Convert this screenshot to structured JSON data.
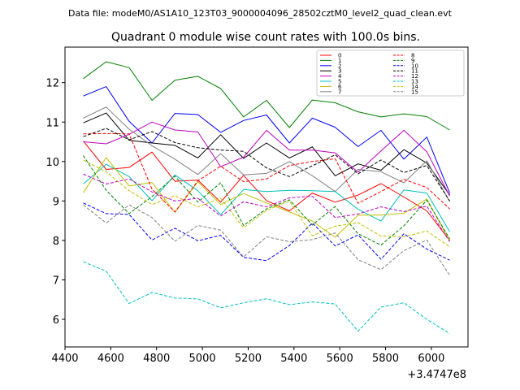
{
  "chart_data": {
    "type": "line",
    "suptitle": "Data file: modeM0/AS1A10_123T03_9000004096_28502cztM0_level2_quad_clean.evt",
    "title": "Quadrant 0 module wise count rates with 100.0s bins.",
    "xlabel": "",
    "ylabel": "",
    "offset_text": "+3.4747e8",
    "xlim": [
      4400,
      6160
    ],
    "ylim": [
      5.3,
      12.9
    ],
    "xticks": [
      4400,
      4600,
      4800,
      5000,
      5200,
      5400,
      5600,
      5800,
      6000
    ],
    "yticks": [
      6,
      7,
      8,
      9,
      10,
      11,
      12
    ],
    "grid": false,
    "legend_position": "top-right",
    "x": [
      4480,
      4580,
      4680,
      4780,
      4880,
      4980,
      5080,
      5180,
      5280,
      5380,
      5480,
      5580,
      5680,
      5780,
      5880,
      5980,
      6080
    ],
    "series": [
      {
        "name": "0",
        "color": "#ff0000",
        "dash": "solid",
        "values": [
          10.52,
          9.8,
          9.85,
          10.24,
          9.5,
          9.53,
          8.97,
          9.65,
          9.01,
          8.75,
          9.2,
          8.97,
          9.15,
          9.44,
          9.1,
          8.75,
          8.0
        ]
      },
      {
        "name": "1",
        "color": "#008000",
        "dash": "solid",
        "values": [
          12.1,
          12.53,
          12.38,
          11.55,
          12.06,
          12.16,
          11.85,
          11.13,
          11.55,
          10.86,
          11.56,
          11.49,
          11.26,
          11.13,
          11.21,
          11.14,
          10.8
        ]
      },
      {
        "name": "2",
        "color": "#0000ff",
        "dash": "solid",
        "values": [
          11.66,
          11.9,
          11.02,
          10.47,
          11.22,
          11.19,
          10.74,
          11.04,
          11.18,
          10.47,
          11.1,
          10.87,
          10.38,
          10.79,
          10.06,
          10.62,
          9.2
        ]
      },
      {
        "name": "3",
        "color": "#000000",
        "dash": "solid",
        "values": [
          10.98,
          11.23,
          10.54,
          10.47,
          10.41,
          10.09,
          10.68,
          10.08,
          10.47,
          10.09,
          10.37,
          9.64,
          9.94,
          9.78,
          10.3,
          9.96,
          9.15
        ]
      },
      {
        "name": "4",
        "color": "#bf00bf",
        "dash": "solid",
        "values": [
          10.5,
          10.45,
          10.69,
          11.0,
          10.8,
          10.75,
          9.87,
          10.11,
          10.79,
          10.29,
          10.29,
          10.22,
          9.73,
          10.27,
          10.79,
          10.25,
          9.12
        ]
      },
      {
        "name": "5",
        "color": "#00bfbf",
        "dash": "solid",
        "values": [
          9.43,
          9.93,
          9.62,
          9.01,
          9.66,
          9.26,
          8.65,
          9.29,
          9.24,
          9.27,
          9.26,
          9.24,
          8.79,
          8.49,
          9.28,
          9.2,
          8.22
        ]
      },
      {
        "name": "6",
        "color": "#bfbf00",
        "dash": "solid",
        "values": [
          9.21,
          10.1,
          9.38,
          9.47,
          8.71,
          9.49,
          8.91,
          9.19,
          8.95,
          8.72,
          8.49,
          8.08,
          8.64,
          8.64,
          8.69,
          9.05,
          7.99
        ]
      },
      {
        "name": "7",
        "color": "#808080",
        "dash": "solid",
        "values": [
          11.1,
          11.38,
          10.82,
          10.4,
          10.06,
          9.67,
          10.2,
          9.66,
          9.7,
          10.0,
          9.64,
          9.24,
          9.8,
          9.74,
          9.46,
          10.02,
          8.98
        ]
      },
      {
        "name": "8",
        "color": "#ff0000",
        "dash": "dashed",
        "values": [
          10.7,
          10.71,
          10.7,
          9.3,
          8.72,
          9.51,
          9.88,
          9.49,
          9.56,
          9.9,
          10.0,
          10.07,
          8.94,
          9.24,
          9.55,
          9.34,
          8.8
        ]
      },
      {
        "name": "9",
        "color": "#008000",
        "dash": "dashed",
        "values": [
          10.15,
          9.27,
          8.68,
          9.11,
          9.63,
          8.97,
          9.46,
          8.38,
          8.8,
          9.03,
          8.39,
          8.86,
          8.17,
          7.88,
          8.37,
          9.02,
          8.04
        ]
      },
      {
        "name": "10",
        "color": "#0000ff",
        "dash": "dashed",
        "values": [
          8.95,
          8.68,
          8.66,
          8.01,
          8.31,
          7.99,
          8.13,
          7.57,
          7.49,
          7.87,
          8.44,
          7.86,
          8.14,
          7.52,
          8.17,
          7.78,
          7.5
        ]
      },
      {
        "name": "11",
        "color": "#000000",
        "dash": "dashed",
        "values": [
          10.63,
          10.84,
          10.55,
          10.76,
          10.48,
          10.35,
          10.29,
          10.26,
          9.84,
          9.62,
          9.89,
          10.17,
          9.69,
          10.04,
          9.72,
          9.9,
          9.0
        ]
      },
      {
        "name": "12",
        "color": "#bf00bf",
        "dash": "dashed",
        "values": [
          9.68,
          9.43,
          9.56,
          9.23,
          9.0,
          9.07,
          8.62,
          8.98,
          8.85,
          9.08,
          9.12,
          8.58,
          8.67,
          8.85,
          8.73,
          8.87,
          7.97
        ]
      },
      {
        "name": "13",
        "color": "#00bfbf",
        "dash": "dashed",
        "values": [
          7.46,
          7.22,
          6.4,
          6.68,
          6.54,
          6.52,
          6.29,
          6.42,
          6.52,
          6.37,
          6.44,
          6.39,
          5.7,
          6.31,
          6.42,
          6.0,
          5.64
        ]
      },
      {
        "name": "14",
        "color": "#bfbf00",
        "dash": "dashed",
        "values": [
          10.04,
          9.74,
          9.26,
          8.91,
          9.13,
          8.85,
          9.07,
          8.32,
          8.76,
          9.0,
          8.12,
          8.36,
          8.45,
          8.11,
          8.09,
          8.24,
          7.84
        ]
      },
      {
        "name": "15",
        "color": "#808080",
        "dash": "dashed",
        "values": [
          8.9,
          8.44,
          8.9,
          8.58,
          7.98,
          8.38,
          8.26,
          7.58,
          8.09,
          7.97,
          8.02,
          8.19,
          7.51,
          7.26,
          7.74,
          8.01,
          7.11
        ]
      }
    ]
  }
}
